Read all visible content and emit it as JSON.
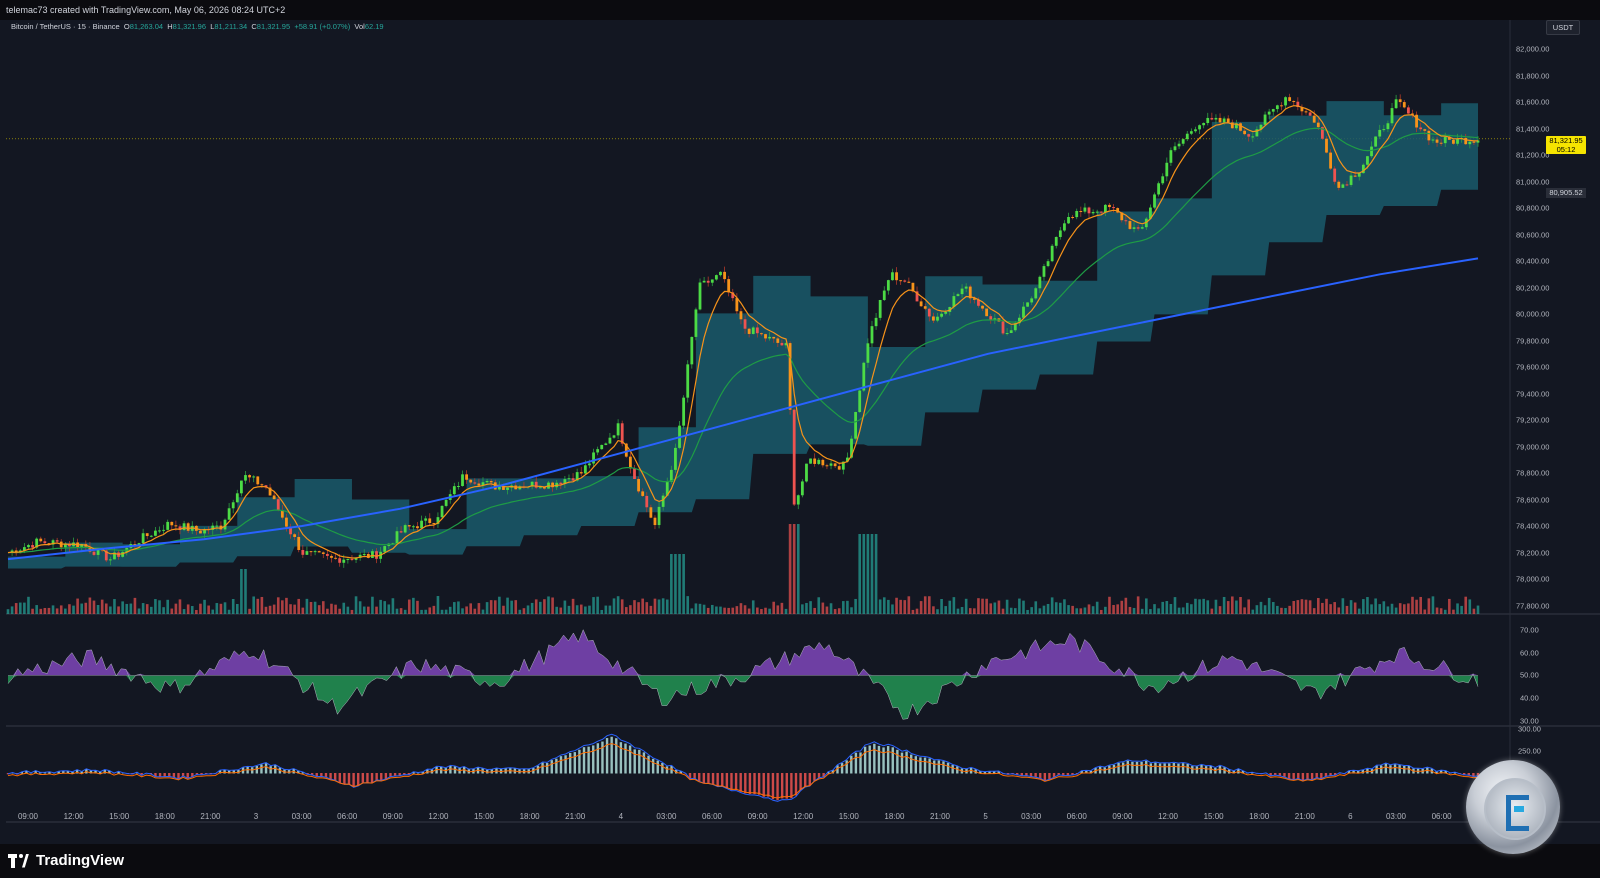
{
  "header": {
    "credit": "telemac73 created with TradingView.com, May 06, 2026 08:24 UTC+2"
  },
  "legend": {
    "symbol": "Bitcoin / TetherUS · 15 · Binance",
    "open_label": "O",
    "open": "81,263.04",
    "high_label": "H",
    "high": "81,321.96",
    "low_label": "L",
    "low": "81,211.34",
    "close_label": "C",
    "close": "81,321.95",
    "change": "+58.91 (+0.07%)",
    "vol_label": "Vol",
    "vol": "62.19"
  },
  "price_axis": {
    "unit": "USDT",
    "ticks": [
      "82,000.00",
      "81,800.00",
      "81,600.00",
      "81,400.00",
      "81,200.00",
      "81,000.00",
      "80,800.00",
      "80,600.00",
      "80,400.00",
      "80,200.00",
      "80,000.00",
      "79,800.00",
      "79,600.00",
      "79,400.00",
      "79,200.00",
      "79,000.00",
      "78,800.00",
      "78,600.00",
      "78,400.00",
      "78,200.00",
      "78,000.00",
      "77,800.00"
    ],
    "current_price": "81,321.95",
    "countdown": "05:12",
    "level_price": "80,905.52"
  },
  "rsi_axis": {
    "ticks": [
      "70.00",
      "60.00",
      "50.00",
      "40.00",
      "30.00"
    ]
  },
  "macd_axis": {
    "ticks": [
      "300.00",
      "250.00"
    ]
  },
  "time_axis": {
    "ticks": [
      "09:00",
      "12:00",
      "15:00",
      "18:00",
      "21:00",
      "3",
      "03:00",
      "06:00",
      "09:00",
      "12:00",
      "15:00",
      "18:00",
      "21:00",
      "4",
      "03:00",
      "06:00",
      "09:00",
      "12:00",
      "15:00",
      "18:00",
      "21:00",
      "5",
      "03:00",
      "06:00",
      "09:00",
      "12:00",
      "15:00",
      "18:00",
      "21:00",
      "6",
      "03:00",
      "06:00"
    ]
  },
  "footer": {
    "brand": "TradingView"
  },
  "colors": {
    "background": "#131722",
    "up": "#26a69a",
    "up_bright": "#4cdb45",
    "down": "#ef5350",
    "ema_fast": "#f7931a",
    "ema_mid": "#1e9c45",
    "ema_slow": "#2962ff",
    "cloud": "#1a5a6b",
    "rsi_up": "#8e4dcf",
    "rsi_down": "#26a65b",
    "current_price_tag": "#f5e400"
  },
  "chart_data": [
    {
      "type": "candlestick",
      "title": "Bitcoin / TetherUS · 15 · Binance",
      "ylim": [
        77700,
        82100
      ],
      "anchors": [
        {
          "t": 0.0,
          "p": 78200
        },
        {
          "t": 0.02,
          "p": 78280
        },
        {
          "t": 0.05,
          "p": 78260
        },
        {
          "t": 0.07,
          "p": 78150
        },
        {
          "t": 0.09,
          "p": 78300
        },
        {
          "t": 0.11,
          "p": 78420
        },
        {
          "t": 0.13,
          "p": 78360
        },
        {
          "t": 0.145,
          "p": 78400
        },
        {
          "t": 0.16,
          "p": 78780
        },
        {
          "t": 0.175,
          "p": 78700
        },
        {
          "t": 0.2,
          "p": 78200
        },
        {
          "t": 0.22,
          "p": 78150
        },
        {
          "t": 0.25,
          "p": 78180
        },
        {
          "t": 0.27,
          "p": 78380
        },
        {
          "t": 0.29,
          "p": 78450
        },
        {
          "t": 0.31,
          "p": 78780
        },
        {
          "t": 0.33,
          "p": 78700
        },
        {
          "t": 0.37,
          "p": 78720
        },
        {
          "t": 0.39,
          "p": 78800
        },
        {
          "t": 0.4,
          "p": 78950
        },
        {
          "t": 0.415,
          "p": 79150
        },
        {
          "t": 0.425,
          "p": 78800
        },
        {
          "t": 0.44,
          "p": 78400
        },
        {
          "t": 0.455,
          "p": 79000
        },
        {
          "t": 0.47,
          "p": 80200
        },
        {
          "t": 0.485,
          "p": 80300
        },
        {
          "t": 0.5,
          "p": 79900
        },
        {
          "t": 0.53,
          "p": 79750
        },
        {
          "t": 0.535,
          "p": 78550
        },
        {
          "t": 0.545,
          "p": 78900
        },
        {
          "t": 0.57,
          "p": 78850
        },
        {
          "t": 0.585,
          "p": 79800
        },
        {
          "t": 0.6,
          "p": 80300
        },
        {
          "t": 0.61,
          "p": 80250
        },
        {
          "t": 0.63,
          "p": 79950
        },
        {
          "t": 0.65,
          "p": 80200
        },
        {
          "t": 0.68,
          "p": 79850
        },
        {
          "t": 0.7,
          "p": 80200
        },
        {
          "t": 0.72,
          "p": 80750
        },
        {
          "t": 0.75,
          "p": 80800
        },
        {
          "t": 0.77,
          "p": 80600
        },
        {
          "t": 0.79,
          "p": 81200
        },
        {
          "t": 0.81,
          "p": 81450
        },
        {
          "t": 0.83,
          "p": 81450
        },
        {
          "t": 0.845,
          "p": 81350
        },
        {
          "t": 0.87,
          "p": 81650
        },
        {
          "t": 0.89,
          "p": 81450
        },
        {
          "t": 0.905,
          "p": 80950
        },
        {
          "t": 0.92,
          "p": 81100
        },
        {
          "t": 0.945,
          "p": 81600
        },
        {
          "t": 0.97,
          "p": 81300
        },
        {
          "t": 1.0,
          "p": 81322
        }
      ]
    },
    {
      "type": "line",
      "series": [
        {
          "name": "",
          "values": [
            78150,
            78230,
            78300,
            78400,
            78530,
            78700,
            78900,
            79100,
            79300,
            79500,
            79700,
            79850,
            80000,
            80150,
            80300,
            80420
          ]
        }
      ]
    },
    {
      "type": "area",
      "series": [
        {
          "name": "",
          "values": [
            50,
            58,
            44,
            62,
            36,
            55,
            47,
            68,
            40,
            50,
            64,
            33,
            56,
            66,
            45,
            58,
            42,
            60,
            48
          ]
        }
      ],
      "ylim": [
        28,
        72
      ]
    },
    {
      "type": "bar",
      "series": [
        {
          "name": "",
          "values": [
            0,
            10,
            -15,
            30,
            -40,
            20,
            10,
            120,
            -30,
            -90,
            100,
            20,
            -20,
            40,
            20,
            -25,
            30,
            -10
          ]
        }
      ]
    }
  ]
}
